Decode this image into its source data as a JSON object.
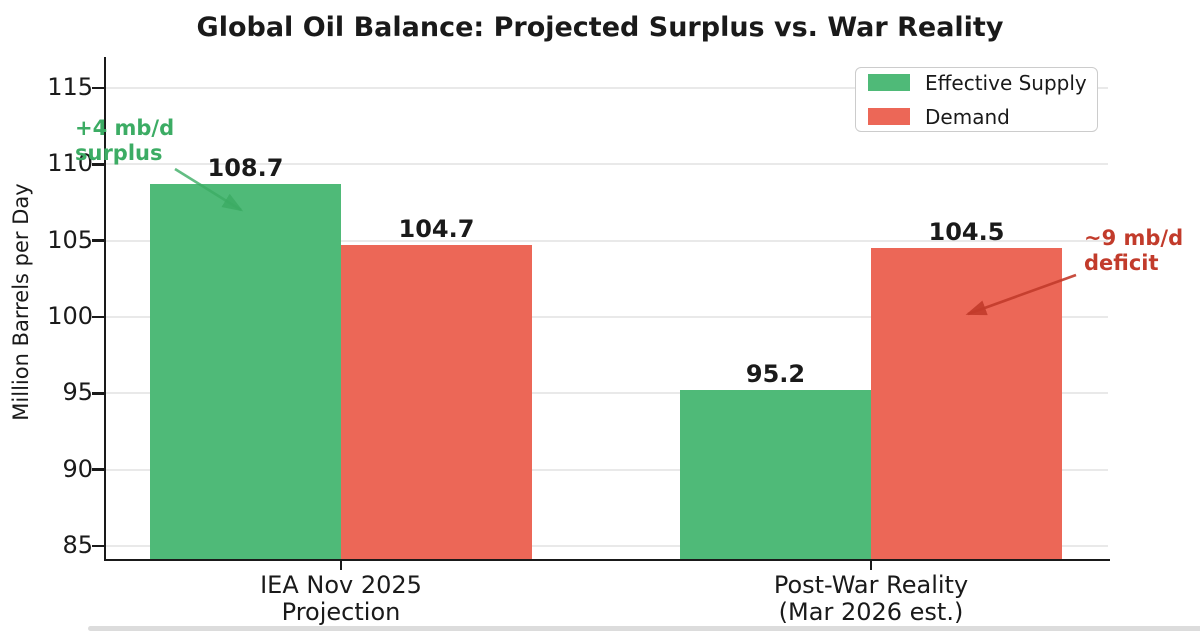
{
  "figure": {
    "background": "#ffffff",
    "bottom_strip_color": "#d8d8d8"
  },
  "chart_data": {
    "type": "bar",
    "title": "Global Oil Balance: Projected Surplus vs. War Reality",
    "xlabel": "",
    "ylabel": "Million Barrels per Day",
    "categories": [
      {
        "line1": "IEA Nov 2025",
        "line2": "Projection"
      },
      {
        "line1": "Post-War Reality",
        "line2": "(Mar 2026 est.)"
      }
    ],
    "series": [
      {
        "name": "Effective Supply",
        "color": "#4fba78",
        "values": [
          108.7,
          95.2
        ],
        "labels": [
          "108.7",
          "95.2"
        ]
      },
      {
        "name": "Demand",
        "color": "#ec6757",
        "values": [
          104.7,
          104.5
        ],
        "labels": [
          "104.7",
          "104.5"
        ]
      }
    ],
    "yticks": [
      115,
      110,
      105,
      100,
      95,
      90,
      85
    ],
    "ylim": [
      84.1,
      117
    ],
    "grid": true,
    "grid_color": "#e9e9e9",
    "axis_color": "#1a1a1a",
    "text_color": "#1a1a1a",
    "legend_position": "upper right",
    "annotations": [
      {
        "line1": "+4 mb/d",
        "line2": "surplus",
        "color": "#3cac64",
        "arrow": {
          "from": [
            175,
            169
          ],
          "to": [
            241,
            210
          ]
        }
      },
      {
        "line1": "~9 mb/d",
        "line2": "deficit",
        "color": "#c23b2b",
        "arrow": {
          "from": [
            1076,
            275
          ],
          "to": [
            968,
            314
          ]
        }
      }
    ]
  }
}
